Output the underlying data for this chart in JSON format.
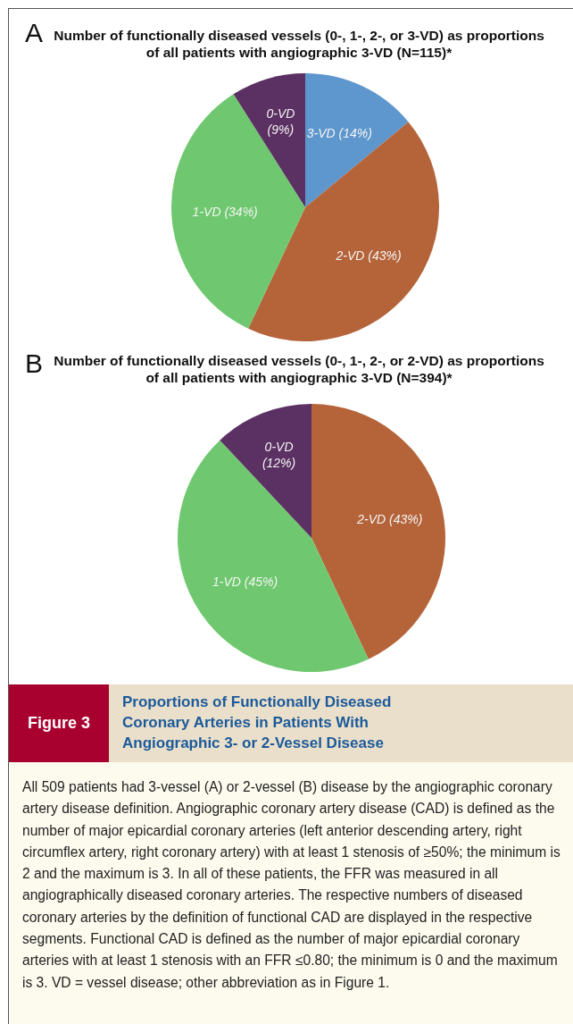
{
  "chart_data": [
    {
      "type": "pie",
      "title": "Number of functionally diseased vessels (0-, 1-, 2-, or 3-VD) as proportions of all patients with angiographic 3-VD (N=115)*",
      "annotations": [
        "A"
      ],
      "categories": [
        "3-VD",
        "2-VD",
        "1-VD",
        "0-VD"
      ],
      "values": [
        14,
        43,
        34,
        9
      ],
      "colors": [
        "#5e97cd",
        "#b5643a",
        "#6fc86f",
        "#5b3062"
      ],
      "value_labels": [
        "(14%)",
        "(43%)",
        "(34%)",
        "(9%)"
      ],
      "legend": false
    },
    {
      "type": "pie",
      "title": "Number of functionally diseased vessels (0-, 1-, 2-, or 2-VD) as proportions of all patients with angiographic 3-VD (N=394)*",
      "annotations": [
        "B"
      ],
      "categories": [
        "2-VD",
        "1-VD",
        "0-VD"
      ],
      "values": [
        43,
        45,
        12
      ],
      "colors": [
        "#b5643a",
        "#6fc86f",
        "#5b3062"
      ],
      "value_labels": [
        "(43%)",
        "(45%)",
        "(12%)"
      ],
      "legend": false
    },
    {
      "type": "other",
      "title": "Proportions of Functionally Diseased Coronary Arteries in Patients With Angiographic 3- or 2-Vessel Disease",
      "annotations": [
        "Figure 3",
        "All 509 patients had 3-vessel (A) or 2-vessel (B) disease by the angiographic coronary artery disease definition. Angiographic coronary artery disease (CAD) is defined as the number of major epicardial coronary arteries (left anterior descending artery, right circumflex artery, right coronary artery) with at least 1 stenosis of ≥50%; the minimum is 2 and the maximum is 3. In all of these patients, the FFR was measured in all angiographically diseased coronary arteries. The respective numbers of diseased coronary arteries by the definition of functional CAD are displayed in the respective segments. Functional CAD is defined as the number of major epicardial coronary arteries with at least 1 stenosis with an FFR ≤0.80; the minimum is 0 and the maximum is 3. VD = vessel disease; other abbreviation as in Figure 1."
      ]
    }
  ]
}
